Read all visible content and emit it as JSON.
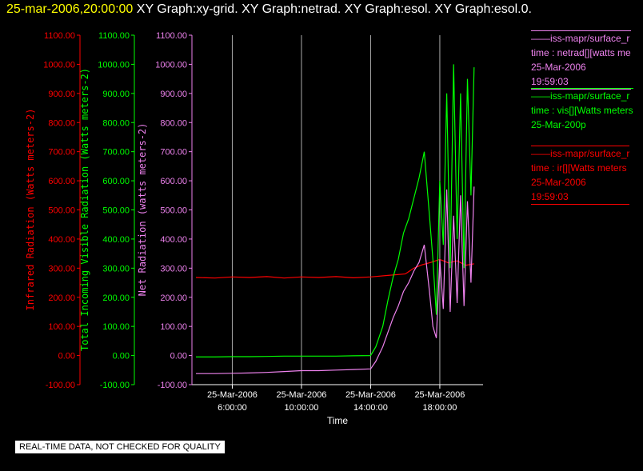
{
  "header": {
    "timestamp": "25-mar-2006,20:00:00",
    "titles": " XY Graph:xy-grid.  XY Graph:netrad.  XY Graph:esol.  XY Graph:esol.0."
  },
  "legend": {
    "netrad": {
      "line1": "——iss-mapr/surface_r",
      "line2": "time : netrad[][watts me",
      "line3": "25-Mar-2006",
      "line4": "19:59:03"
    },
    "vis": {
      "line1": "——iss-mapr/surface_r",
      "line2": "time : vis[][Watts meters",
      "line3": "25-Mar-200p"
    },
    "ir": {
      "line1": "——iss-mapr/surface_r",
      "line2": "time : ir[][Watts meters",
      "line3": "25-Mar-2006",
      "line4": "19:59:03"
    }
  },
  "quality_note": "REAL-TIME DATA, NOT CHECKED FOR QUALITY",
  "colors": {
    "ir": "#ff0000",
    "vis": "#00ff00",
    "netrad": "#ee82ee",
    "text": "#ffffff",
    "grid": "#aaaaaa"
  },
  "chart_data": {
    "type": "line",
    "xlabel": "Time",
    "x_range": [
      "25-Mar-2006 3:40:00",
      "25-Mar-2006 20:30:00"
    ],
    "x_ticks": [
      {
        "label_date": "25-Mar-2006",
        "label_time": "6:00:00",
        "hours": 6
      },
      {
        "label_date": "25-Mar-2006",
        "label_time": "10:00:00",
        "hours": 10
      },
      {
        "label_date": "25-Mar-2006",
        "label_time": "14:00:00",
        "hours": 14
      },
      {
        "label_date": "25-Mar-2006",
        "label_time": "18:00:00",
        "hours": 18
      }
    ],
    "y_ticks": [
      "1100.00",
      "1000.00",
      "900.00",
      "800.00",
      "700.00",
      "600.00",
      "500.00",
      "400.00",
      "300.00",
      "200.00",
      "100.00",
      "0.00",
      "-100.00"
    ],
    "y_tick_values": [
      1100,
      1000,
      900,
      800,
      700,
      600,
      500,
      400,
      300,
      200,
      100,
      0,
      -100
    ],
    "ylim": [
      -100,
      1100
    ],
    "axes": [
      {
        "label": "Infrared Radiation (Watts meters-2)",
        "color": "#ff0000"
      },
      {
        "label": "Total Incoming Visible Radiation (Watts meters-2)",
        "color": "#00ff00"
      },
      {
        "label": "Net Radiation (watts meters-2)",
        "color": "#ee82ee"
      }
    ],
    "series": [
      {
        "key": "ir",
        "color": "#ff0000",
        "x_hours": [
          3.9,
          5,
          6,
          7,
          8,
          9,
          10,
          11,
          12,
          13,
          14,
          15,
          16,
          16.5,
          17,
          17.5,
          18,
          18.5,
          19,
          19.5,
          19.98
        ],
        "y": [
          268,
          266,
          270,
          268,
          271,
          266,
          270,
          268,
          271,
          267,
          270,
          275,
          280,
          300,
          312,
          320,
          330,
          318,
          325,
          310,
          315
        ]
      },
      {
        "key": "vis",
        "color": "#00ff00",
        "x_hours": [
          3.9,
          5,
          6,
          7,
          8,
          9,
          10,
          11,
          12,
          13,
          14,
          14.3,
          14.7,
          15,
          15.3,
          15.6,
          15.9,
          16.2,
          16.5,
          16.8,
          17.1,
          17.4,
          17.6,
          17.8,
          18.0,
          18.2,
          18.4,
          18.6,
          18.8,
          19.0,
          19.2,
          19.4,
          19.6,
          19.8,
          19.98
        ],
        "y": [
          -5,
          -5,
          -4,
          -4,
          -3,
          -2,
          -2,
          -2,
          -2,
          -1,
          0,
          30,
          100,
          190,
          270,
          330,
          420,
          470,
          540,
          610,
          700,
          480,
          330,
          140,
          600,
          380,
          900,
          300,
          1000,
          400,
          900,
          300,
          950,
          550,
          990
        ]
      },
      {
        "key": "netrad",
        "color": "#ee82ee",
        "x_hours": [
          3.9,
          5,
          6,
          7,
          8,
          9,
          10,
          11,
          12,
          13,
          14,
          14.3,
          14.7,
          15,
          15.3,
          15.6,
          15.9,
          16.2,
          16.5,
          16.8,
          17.1,
          17.4,
          17.6,
          17.8,
          18.0,
          18.2,
          18.4,
          18.6,
          18.8,
          19.0,
          19.2,
          19.4,
          19.6,
          19.8,
          19.98
        ],
        "y": [
          -62,
          -62,
          -61,
          -60,
          -58,
          -55,
          -52,
          -52,
          -50,
          -48,
          -46,
          -20,
          30,
          80,
          130,
          170,
          220,
          250,
          290,
          320,
          380,
          220,
          100,
          60,
          330,
          160,
          570,
          150,
          480,
          180,
          550,
          170,
          530,
          250,
          580
        ]
      }
    ]
  }
}
